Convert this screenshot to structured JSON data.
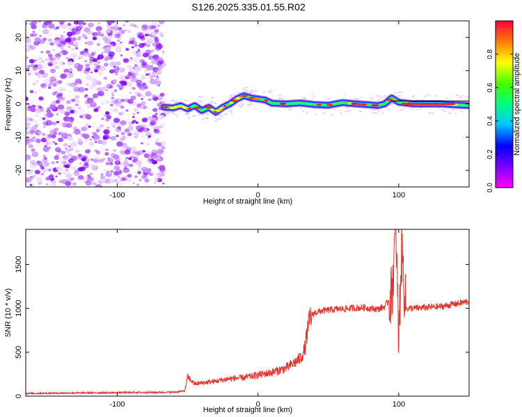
{
  "page_title": "S126.2025.335.01.55.R02",
  "chart_data": [
    {
      "type": "heatmap",
      "name": "spectrogram",
      "xlabel": "Height of straight line (km)",
      "ylabel": "Frequency (Hz)",
      "xlim": [
        -165,
        150
      ],
      "ylim": [
        -25,
        25
      ],
      "x_ticks": [
        -100,
        0,
        100
      ],
      "x_tick_labels": [
        "-100",
        "0",
        "100"
      ],
      "y_ticks": [
        -20,
        -10,
        0,
        10,
        20
      ],
      "y_tick_labels": [
        "-20",
        "-10",
        "0",
        "10",
        "20"
      ],
      "noise_region_x": [
        -165,
        -67
      ],
      "signal_start_x": -67,
      "ridge": {
        "x": [
          -67,
          -60,
          -55,
          -50,
          -45,
          -40,
          -35,
          -30,
          -25,
          -20,
          -15,
          -10,
          -5,
          0,
          5,
          10,
          20,
          30,
          40,
          50,
          60,
          70,
          80,
          85,
          90,
          95,
          100,
          110,
          120,
          130,
          140,
          150
        ],
        "freq": [
          -1,
          -1.2,
          -0.5,
          -1.5,
          -0.5,
          -2,
          -1,
          -2.5,
          -1,
          0,
          1.5,
          2.5,
          1.8,
          1.5,
          1.2,
          0.2,
          0,
          0.3,
          -0.2,
          -0.4,
          0.4,
          0,
          -0.3,
          -0.5,
          0,
          1.8,
          0.5,
          0,
          0,
          0,
          -0.3,
          -0.5
        ]
      },
      "colorbar": {
        "label": "Normalized spectral amplitude",
        "range": [
          0,
          1
        ],
        "ticks": [
          0,
          0.2,
          0.4,
          0.6,
          0.8
        ],
        "tick_labels": [
          "0.0",
          "0.2",
          "0.4",
          "0.6",
          "0.8"
        ]
      }
    },
    {
      "type": "line",
      "name": "snr",
      "xlabel": "Height of straight line (km)",
      "ylabel": "SNR (10 * v/v)",
      "xlim": [
        -165,
        150
      ],
      "ylim": [
        0,
        1900
      ],
      "x_ticks": [
        -100,
        0,
        100
      ],
      "x_tick_labels": [
        "-100",
        "0",
        "100"
      ],
      "y_ticks": [
        0,
        500,
        1000,
        1500
      ],
      "y_tick_labels": [
        "0",
        "500",
        "1000",
        "1500"
      ],
      "series": [
        {
          "name": "SNR",
          "color": "#e8302a",
          "x": [
            -165,
            -140,
            -120,
            -100,
            -80,
            -60,
            -52,
            -50,
            -45,
            -40,
            -30,
            -20,
            -10,
            0,
            10,
            20,
            25,
            30,
            33,
            35,
            37,
            40,
            45,
            55,
            65,
            75,
            85,
            90,
            95,
            98,
            100,
            102,
            105,
            110,
            120,
            130,
            140,
            150
          ],
          "y": [
            30,
            35,
            38,
            40,
            42,
            45,
            60,
            220,
            140,
            150,
            170,
            200,
            210,
            240,
            270,
            320,
            370,
            430,
            520,
            720,
            900,
            950,
            970,
            990,
            1000,
            1010,
            990,
            1020,
            1150,
            1900,
            600,
            1700,
            1000,
            1000,
            1010,
            1020,
            1050,
            1080
          ]
        }
      ]
    }
  ],
  "colors": {
    "snr_line": "#e8302a",
    "frame": "#000000"
  }
}
